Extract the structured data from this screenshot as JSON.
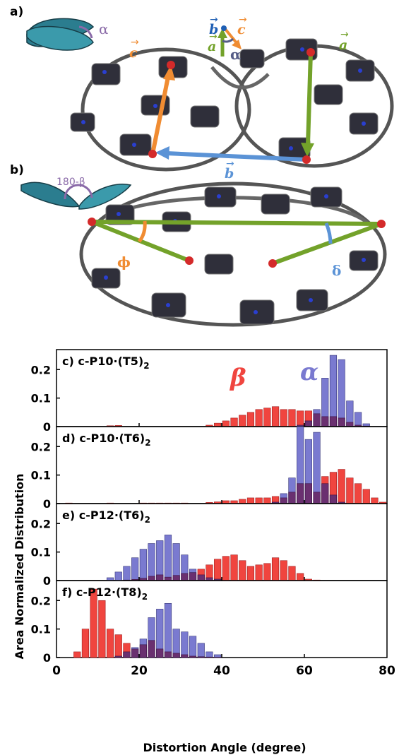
{
  "molecule_panels": {
    "a": {
      "letter": "a)",
      "alpha_label": "α",
      "vectors": {
        "a_label": "a",
        "b_label": "b",
        "c_label": "c",
        "arrow_symbol": "→"
      },
      "colors": {
        "a": "#73a22a",
        "b": "#5b93d6",
        "c": "#f08c32",
        "alpha": "#8a6aa8"
      }
    },
    "b": {
      "letter": "b)",
      "beta_label": "180-β",
      "phi_label": "ϕ",
      "delta_label": "δ",
      "colors": {
        "phi": "#f08c32",
        "delta": "#5b93d6",
        "lines": "#73a22a",
        "dots": "#d42a2a"
      }
    }
  },
  "chart_data": {
    "type": "bar",
    "xlabel": "Distortion Angle (degree)",
    "ylabel": "Area Normalized Distribution",
    "xlim": [
      0,
      80
    ],
    "ylim": [
      0,
      0.27
    ],
    "xticks": [
      "0",
      "20",
      "40",
      "60",
      "80"
    ],
    "yticks": [
      "0",
      "0.1",
      "0.2"
    ],
    "bin_width": 2,
    "colors": {
      "beta": "#f0453f",
      "alpha": "#7a7ad0",
      "overlap": "#6a3070"
    },
    "legend": {
      "beta": "β",
      "alpha": "α"
    },
    "panels": [
      {
        "letter": "c)",
        "name": "c-P10·(T5)",
        "subscript": "2",
        "bins": [
          13,
          15,
          37,
          39,
          41,
          43,
          45,
          47,
          49,
          51,
          53,
          55,
          57,
          59,
          61,
          63,
          65,
          67,
          69,
          71,
          73,
          75
        ],
        "beta": [
          0.003,
          0.004,
          0.005,
          0.012,
          0.02,
          0.03,
          0.04,
          0.05,
          0.06,
          0.065,
          0.07,
          0.06,
          0.06,
          0.055,
          0.055,
          0.045,
          0.035,
          0.035,
          0.03,
          0.015,
          0.005,
          0.002
        ],
        "alpha": [
          0,
          0,
          0,
          0,
          0,
          0,
          0,
          0,
          0,
          0,
          0,
          0,
          0,
          0.005,
          0.02,
          0.06,
          0.17,
          0.25,
          0.235,
          0.09,
          0.05,
          0.01
        ]
      },
      {
        "letter": "d)",
        "name": "c-P10·(T6)",
        "subscript": "2",
        "bins": [
          3,
          13,
          21,
          23,
          25,
          27,
          29,
          31,
          37,
          39,
          41,
          43,
          45,
          47,
          49,
          51,
          53,
          55,
          57,
          59,
          61,
          63,
          65,
          67,
          69,
          71,
          73,
          75,
          77,
          79
        ],
        "beta": [
          0.002,
          0.002,
          0.002,
          0.002,
          0.002,
          0.002,
          0.002,
          0.002,
          0.004,
          0.006,
          0.01,
          0.01,
          0.015,
          0.02,
          0.02,
          0.02,
          0.025,
          0.02,
          0.04,
          0.07,
          0.07,
          0.04,
          0.095,
          0.11,
          0.12,
          0.09,
          0.07,
          0.05,
          0.02,
          0.005
        ],
        "alpha": [
          0,
          0,
          0,
          0,
          0,
          0,
          0,
          0,
          0,
          0,
          0,
          0,
          0,
          0,
          0,
          0,
          0.005,
          0.035,
          0.09,
          0.27,
          0.225,
          0.25,
          0.07,
          0.03,
          0.005,
          0,
          0,
          0,
          0,
          0
        ]
      },
      {
        "letter": "e)",
        "name": "c-P12·(T6)",
        "subscript": "2",
        "bins": [
          13,
          15,
          17,
          19,
          21,
          23,
          25,
          27,
          29,
          31,
          33,
          35,
          37,
          39,
          41,
          43,
          45,
          47,
          49,
          51,
          53,
          55,
          57,
          59,
          61,
          63
        ],
        "beta": [
          0,
          0,
          0.002,
          0.004,
          0.008,
          0.015,
          0.02,
          0.012,
          0.018,
          0.025,
          0.028,
          0.04,
          0.055,
          0.075,
          0.085,
          0.09,
          0.07,
          0.05,
          0.055,
          0.06,
          0.08,
          0.07,
          0.05,
          0.025,
          0.005,
          0.002
        ],
        "alpha": [
          0.01,
          0.03,
          0.05,
          0.08,
          0.11,
          0.13,
          0.14,
          0.16,
          0.13,
          0.09,
          0.04,
          0.02,
          0.01,
          0.005,
          0,
          0,
          0,
          0,
          0,
          0,
          0,
          0,
          0,
          0,
          0,
          0
        ]
      },
      {
        "letter": "f)",
        "name": "c-P12·(T8)",
        "subscript": "2",
        "bins": [
          5,
          7,
          9,
          11,
          13,
          15,
          17,
          19,
          21,
          23,
          25,
          27,
          29,
          31,
          33,
          35,
          37,
          39
        ],
        "beta": [
          0.02,
          0.1,
          0.24,
          0.2,
          0.1,
          0.08,
          0.05,
          0.03,
          0.045,
          0.06,
          0.03,
          0.02,
          0.015,
          0.01,
          0.005,
          0.003,
          0.002,
          0.001
        ],
        "alpha": [
          0,
          0,
          0,
          0,
          0,
          0.005,
          0.02,
          0.035,
          0.065,
          0.14,
          0.17,
          0.19,
          0.1,
          0.09,
          0.075,
          0.05,
          0.02,
          0.01
        ]
      }
    ]
  }
}
